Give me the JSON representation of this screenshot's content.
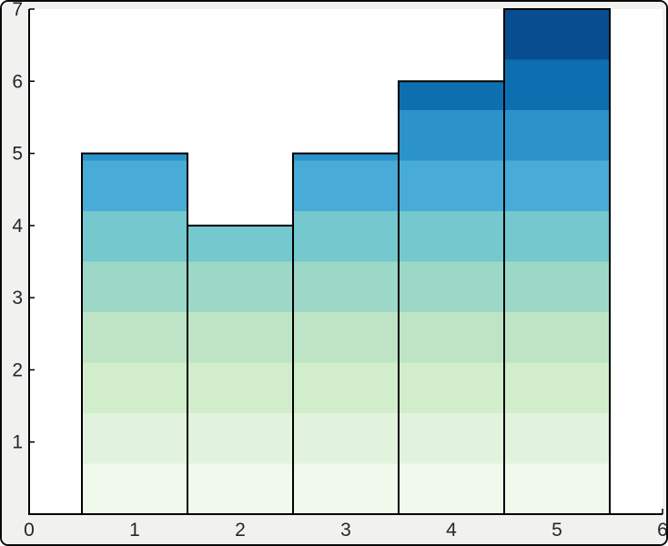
{
  "figure": {
    "background_color": "#f1f1f0",
    "plot_background_color": "#ffffff",
    "axis_color": "#000000",
    "tick_label_color": "#262626",
    "window_border_color": "#0a0a0a"
  },
  "chart_data": {
    "type": "bar",
    "subtype": "histogram",
    "title": "",
    "xlabel": "",
    "ylabel": "",
    "categories": [
      1,
      2,
      3,
      4,
      5
    ],
    "values": [
      5,
      4,
      5,
      6,
      7
    ],
    "bar_width": 1,
    "xlim": [
      0,
      6
    ],
    "ylim": [
      0,
      7
    ],
    "xticks": [
      0,
      1,
      2,
      3,
      4,
      5,
      6
    ],
    "yticks": [
      1,
      2,
      3,
      4,
      5,
      6,
      7
    ],
    "grid": false,
    "legend_position": "none",
    "bar_edge_color": "#000000",
    "fill_style": "horizontal color bands by absolute y-value, shared across all bars",
    "gradient_band_count": 10,
    "gradient_colors_bottom_to_top": [
      "#f0f9ec",
      "#e1f3dc",
      "#d2edcc",
      "#bde5c5",
      "#9dd8c7",
      "#75c8cd",
      "#49abd7",
      "#2b93c9",
      "#0d6fb0",
      "#084d8f"
    ]
  }
}
